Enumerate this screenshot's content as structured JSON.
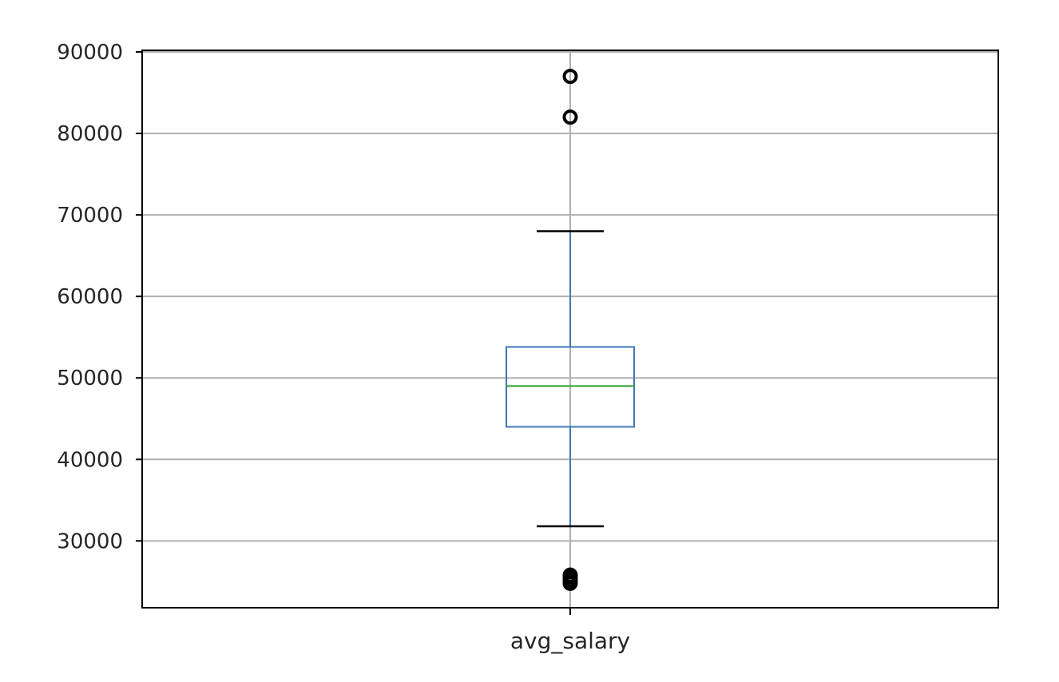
{
  "chart_data": {
    "type": "box",
    "categories": [
      "avg_salary"
    ],
    "boxes": [
      {
        "category": "avg_salary",
        "whisker_low": 31800,
        "q1": 44000,
        "median": 49000,
        "q3": 53800,
        "whisker_high": 68000,
        "outliers": [
          87000,
          82000,
          25800,
          25500,
          25100,
          24800
        ]
      }
    ],
    "ylim": [
      21800,
      90200
    ],
    "yticks": [
      30000,
      40000,
      50000,
      60000,
      70000,
      80000,
      90000
    ],
    "grid": true,
    "title": "",
    "xlabel": "",
    "ylabel": "",
    "colors": {
      "box": "#3f78b8",
      "median": "#2ca02c",
      "whisker_cap": "#000000",
      "grid": "#b0b0b0",
      "frame": "#000000"
    }
  }
}
